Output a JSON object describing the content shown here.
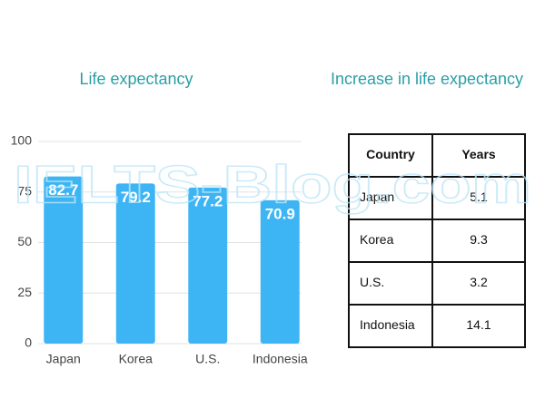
{
  "chart_data": {
    "type": "bar",
    "title": "Life expectancy",
    "categories": [
      "Japan",
      "Korea",
      "U.S.",
      "Indonesia"
    ],
    "values": [
      82.7,
      79.2,
      77.2,
      70.9
    ],
    "color": "#3db5f5",
    "ylim": [
      0,
      100
    ],
    "yticks": [
      0,
      25,
      50,
      75,
      100
    ],
    "grid": true
  },
  "table": {
    "title": "Increase in life expectancy",
    "columns": [
      "Country",
      "Years"
    ],
    "rows": [
      [
        "Japan",
        5.1
      ],
      [
        "Korea",
        9.3
      ],
      [
        "U.S.",
        3.2
      ],
      [
        "Indonesia",
        14.1
      ]
    ]
  },
  "watermark": "IELTS-Blog.com"
}
